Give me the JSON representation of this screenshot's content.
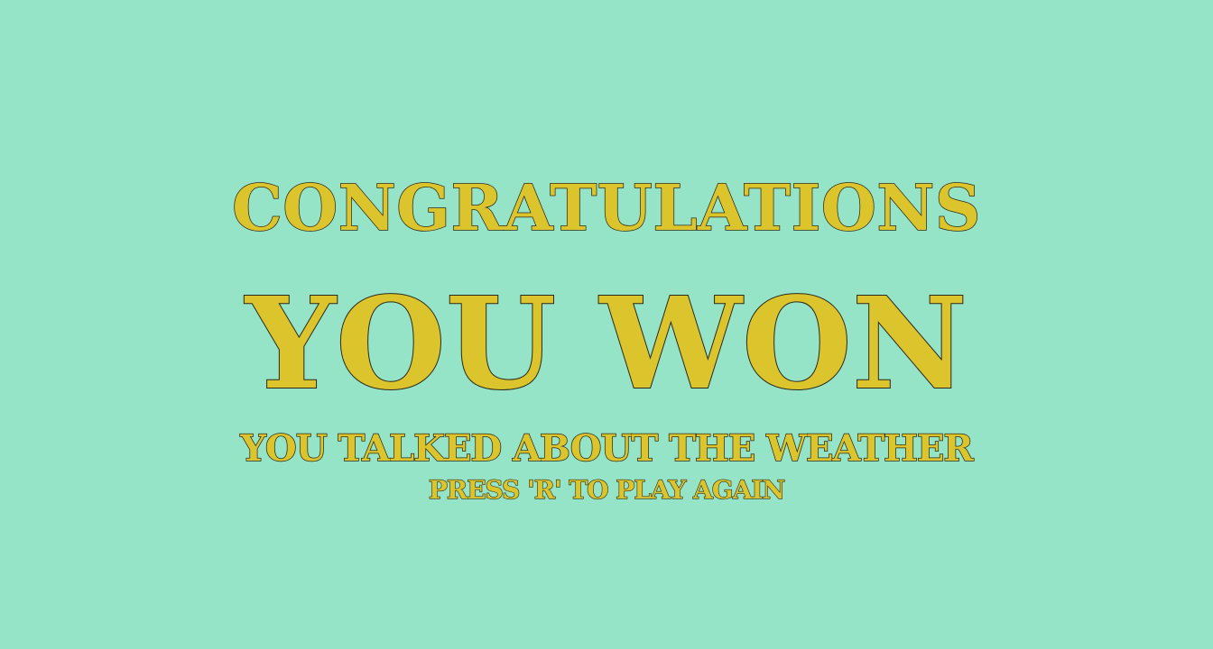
{
  "screen": {
    "headline": "CONGRATULATIONS",
    "result": "YOU WON",
    "subtitle": "YOU TALKED ABOUT THE WEATHER",
    "prompt": "PRESS 'R' TO PLAY AGAIN"
  },
  "colors": {
    "background": "#96e4c8",
    "text_fill": "#dcc42c",
    "text_outline": "#2a2a1a"
  }
}
